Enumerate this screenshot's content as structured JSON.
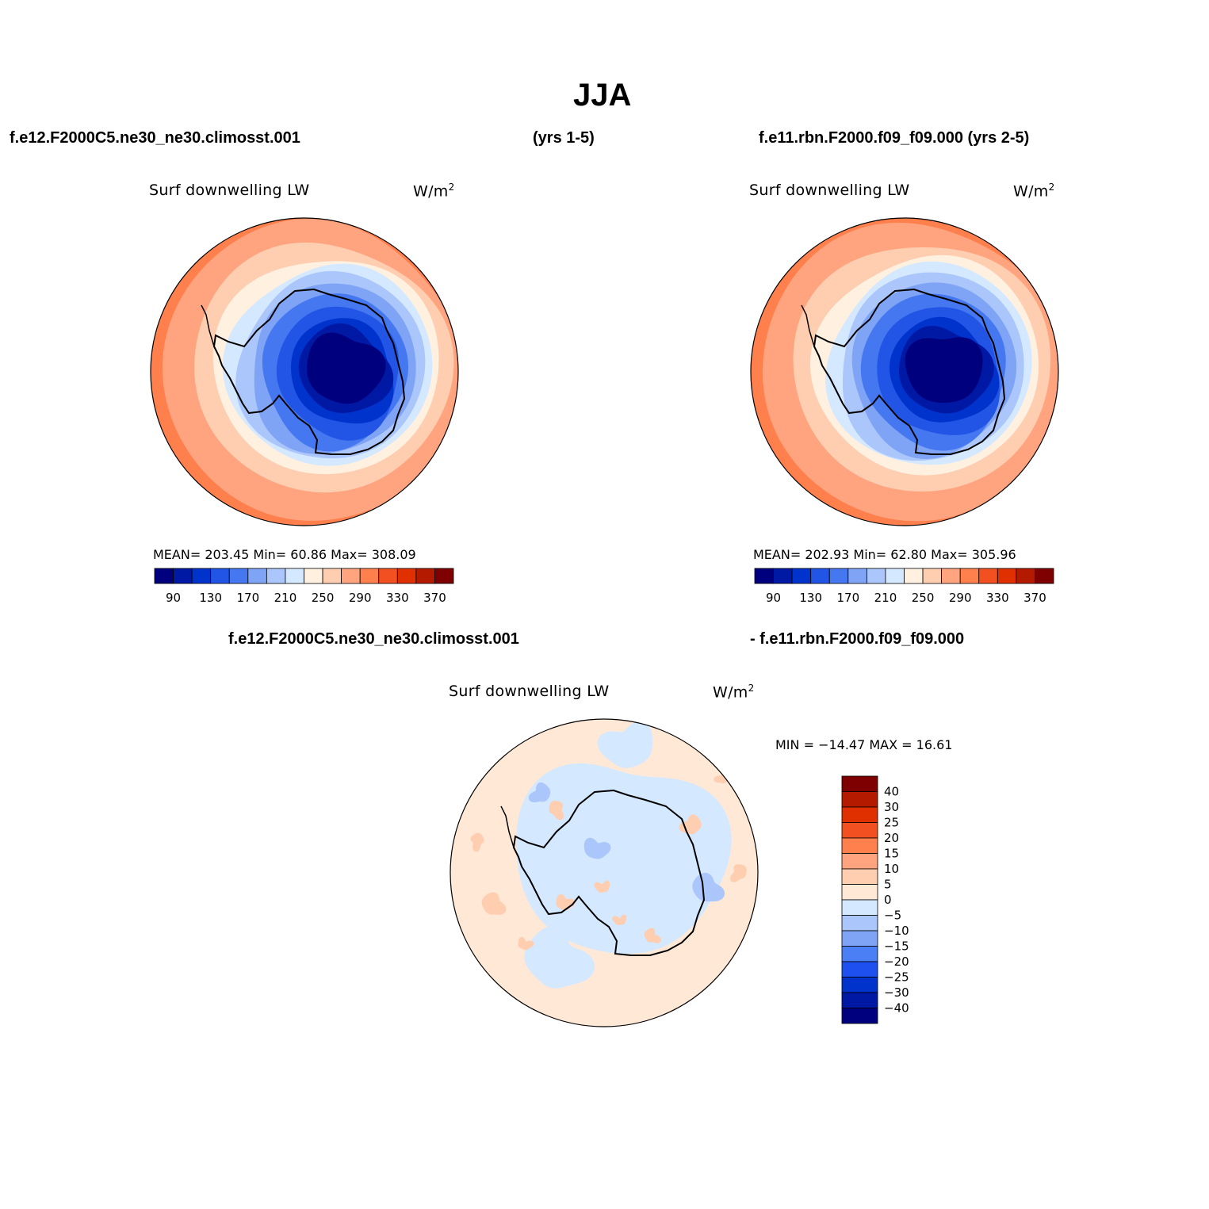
{
  "figure": {
    "title": "JJA",
    "case1_header": "f.e12.F2000C5.ne30_ne30.climosst.001",
    "years1_header": "(yrs 1-5)",
    "case2_header": "f.e11.rbn.F2000.f09_f09.000 (yrs 2-5)",
    "diff_header_left": "f.e12.F2000C5.ne30_ne30.climosst.001",
    "diff_header_right": "- f.e11.rbn.F2000.f09_f09.000"
  },
  "colors": {
    "abs_levels": [
      "#00007f",
      "#0019a5",
      "#0033cc",
      "#2255e6",
      "#4477f0",
      "#7fa3f5",
      "#aac6fa",
      "#d4e8ff",
      "#fff0e0",
      "#ffcdb0",
      "#ffa47f",
      "#ff7f4d",
      "#f25020",
      "#e03000",
      "#b41a00",
      "#7f0000"
    ],
    "diff_levels": [
      "#00007f",
      "#0019a5",
      "#0033cc",
      "#1e50f0",
      "#4a7ff5",
      "#7fa3f5",
      "#aac6fa",
      "#d4e8ff",
      "#ffe8d6",
      "#ffcdb0",
      "#ffa47f",
      "#ff7f4d",
      "#f25020",
      "#e03000",
      "#b41a00",
      "#7f0000"
    ],
    "continent_outline": "#000000"
  },
  "icons": {
    "map_projection": "south-polar-stereographic-map-icon"
  },
  "chart_data": [
    {
      "type": "heatmap",
      "title": "f.e12.F2000C5.ne30_ne30.climosst.001",
      "variable": "Surf downwelling LW",
      "units": "W/m²",
      "units_base": "W/m",
      "units_sup": "2",
      "stats": {
        "mean": 203.45,
        "min": 60.86,
        "max": 308.09
      },
      "stats_text": "MEAN= 203.45   Min=   60.86   Max= 308.09",
      "levels": [
        70,
        90,
        110,
        130,
        150,
        170,
        190,
        210,
        230,
        250,
        270,
        290,
        310,
        330,
        350,
        370
      ],
      "colorbar_tick_labels": [
        "90",
        "130",
        "170",
        "210",
        "250",
        "290",
        "330",
        "370"
      ]
    },
    {
      "type": "heatmap",
      "title": "f.e11.rbn.F2000.f09_f09.000 (yrs 2-5)",
      "variable": "Surf downwelling LW",
      "units": "W/m²",
      "units_base": "W/m",
      "units_sup": "2",
      "stats": {
        "mean": 202.93,
        "min": 62.8,
        "max": 305.96
      },
      "stats_text": "MEAN= 202.93   Min=   62.80   Max= 305.96",
      "levels": [
        70,
        90,
        110,
        130,
        150,
        170,
        190,
        210,
        230,
        250,
        270,
        290,
        310,
        330,
        350,
        370
      ],
      "colorbar_tick_labels": [
        "90",
        "130",
        "170",
        "210",
        "250",
        "290",
        "330",
        "370"
      ]
    },
    {
      "type": "heatmap",
      "title": "f.e12.F2000C5.ne30_ne30.climosst.001 - f.e11.rbn.F2000.f09_f09.000",
      "variable": "Surf downwelling LW",
      "units": "W/m²",
      "units_base": "W/m",
      "units_sup": "2",
      "stats": {
        "min": -14.47,
        "max": 16.61
      },
      "stats_text": "MIN = −14.47 MAX =   16.61",
      "levels": [
        -40,
        -30,
        -25,
        -20,
        -15,
        -10,
        -5,
        0,
        5,
        10,
        15,
        20,
        25,
        30,
        40
      ],
      "colorbar_tick_labels": [
        "40",
        "30",
        "25",
        "20",
        "15",
        "10",
        "5",
        "0",
        "−5",
        "−10",
        "−15",
        "−20",
        "−25",
        "−30",
        "−40"
      ]
    }
  ]
}
